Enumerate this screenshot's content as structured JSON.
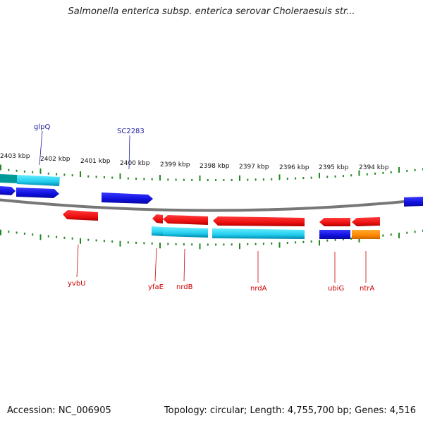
{
  "title": "Salmonella enterica subsp. enterica serovar Choleraesuis str...",
  "footer": {
    "accession": "Accession: NC_006905",
    "summary": "Topology: circular; Length: 4,755,700 bp; Genes: 4,516"
  },
  "colors": {
    "forward_gene": "#1111dd",
    "reverse_gene": "#ee1111",
    "cyan_feature": "#22ccee",
    "orange_feature": "#ff8800",
    "tick": "#228822",
    "backbone": "#888888"
  },
  "scale_labels": [
    "2403 kbp",
    "2402 kbp",
    "2401 kbp",
    "2400 kbp",
    "2399 kbp",
    "2398 kbp",
    "2397 kbp",
    "2396 kbp",
    "2395 kbp",
    "2394 kbp"
  ],
  "top_gene_labels": [
    "glpQ",
    "SC2283"
  ],
  "bottom_gene_labels": [
    "yvbU",
    "yfaE",
    "nrdB",
    "nrdA",
    "ubiG",
    "ntrA"
  ]
}
